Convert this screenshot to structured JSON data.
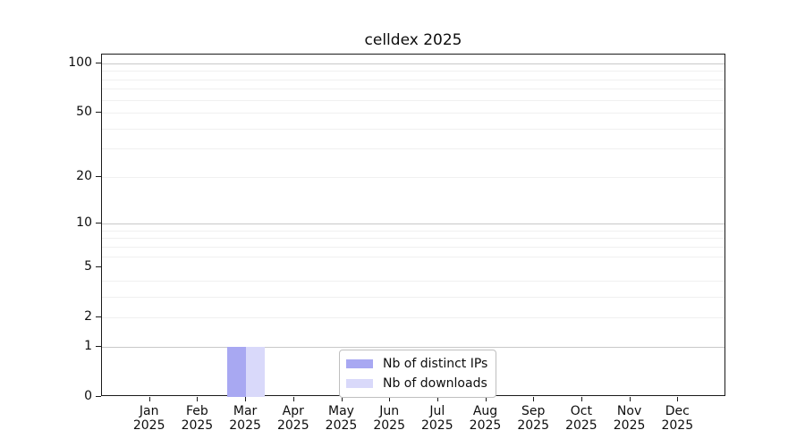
{
  "title": "celldex 2025",
  "chart_data": {
    "type": "bar",
    "title": "celldex 2025",
    "categories": [
      "Jan",
      "Feb",
      "Mar",
      "Apr",
      "May",
      "Jun",
      "Jul",
      "Aug",
      "Sep",
      "Oct",
      "Nov",
      "Dec"
    ],
    "category_year": "2025",
    "series": [
      {
        "name": "Nb of distinct IPs",
        "color": "#a8a8f2",
        "values": [
          0,
          0,
          1,
          0,
          0,
          0,
          0,
          0,
          0,
          0,
          0,
          0
        ]
      },
      {
        "name": "Nb of downloads",
        "color": "#d9d9fa",
        "values": [
          0,
          0,
          1,
          0,
          0,
          0,
          0,
          0,
          0,
          0,
          0,
          0
        ]
      }
    ],
    "xlabel": "",
    "ylabel": "",
    "yscale": "log1p",
    "ylim": [
      0,
      113
    ],
    "yticks_labeled": [
      0,
      1,
      2,
      5,
      10,
      20,
      50,
      100
    ],
    "grid_major": [
      1,
      10,
      100
    ],
    "grid_minor": [
      2,
      3,
      4,
      6,
      7,
      8,
      9,
      20,
      30,
      40,
      50,
      60,
      70,
      80,
      90
    ],
    "grid": "horizontal",
    "legend_position": "inside-bottom-center"
  },
  "colors": {
    "distinct_ips": "#a8a8f2",
    "downloads": "#d9d9fa",
    "grid_major": "#c9c9c9",
    "grid_minor": "#f0f0f0",
    "spine": "#1a1a1a",
    "background": "#ffffff"
  }
}
